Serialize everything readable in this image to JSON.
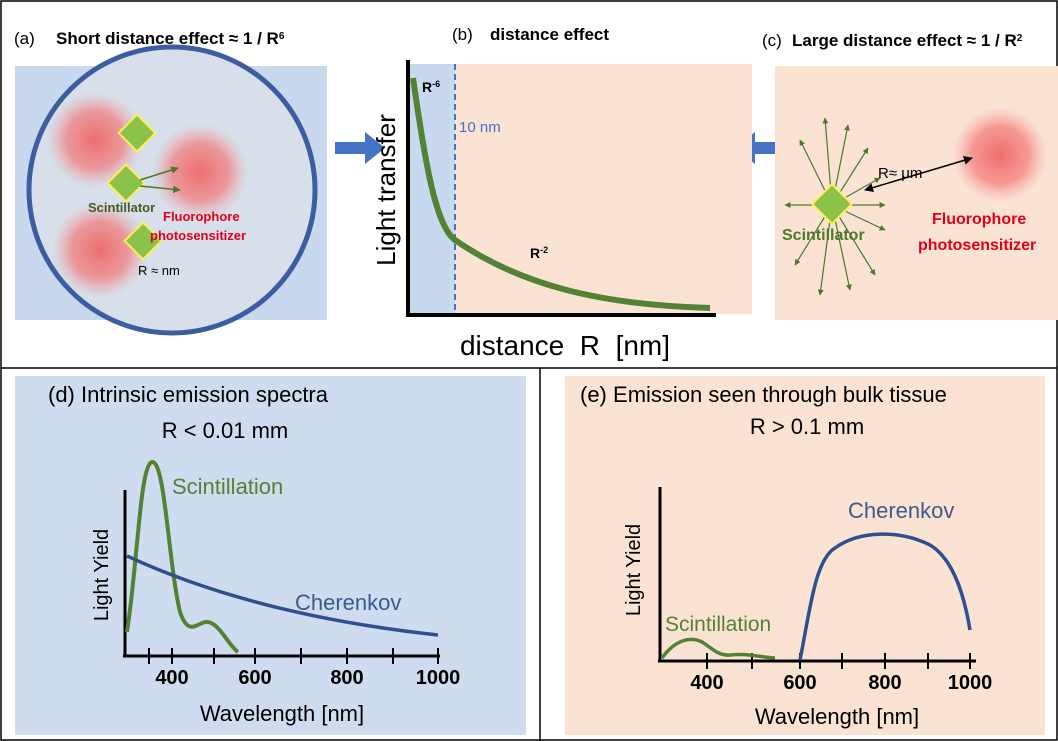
{
  "panels": {
    "a": {
      "label": "(a)",
      "title": "Short distance effect ≈ 1 / R",
      "title_sup": "6",
      "scintillator": "Scintillator",
      "fluorophore": "Fluorophore",
      "photosensitizer": "photosensitizer",
      "distance": "R ≈ nm"
    },
    "b": {
      "label": "(b)",
      "title": "distance effect",
      "y_label": "Light transfer",
      "x_label": "distance  R  [nm]",
      "marker": "10 nm",
      "near_term": "R",
      "near_sup": "-6",
      "far_term": "R",
      "far_sup": "-2"
    },
    "c": {
      "label": "(c)",
      "title": "Large distance effect ≈ 1 / R",
      "title_sup": "2",
      "distance": "R≈ μm",
      "scintillator": "Scintillator",
      "fluorophore": "Fluorophore",
      "photosensitizer": "photosensitizer"
    },
    "d": {
      "label": "(d)",
      "title": "Intrinsic emission spectra",
      "subtitle": "R < 0.01 mm",
      "y_label": "Light Yield",
      "x_label": "Wavelength [nm]",
      "x_ticks": [
        "400",
        "600",
        "800",
        "1000"
      ],
      "curves": [
        "Scintillation",
        "Cherenkov"
      ]
    },
    "e": {
      "label": "(e)",
      "title": "Emission seen through bulk tissue",
      "subtitle": "R > 0.1 mm",
      "y_label": "Light Yield",
      "x_label": "Wavelength [nm]",
      "x_ticks": [
        "400",
        "600",
        "800",
        "1000"
      ],
      "curves": [
        "Scintillation",
        "Cherenkov"
      ]
    }
  }
}
